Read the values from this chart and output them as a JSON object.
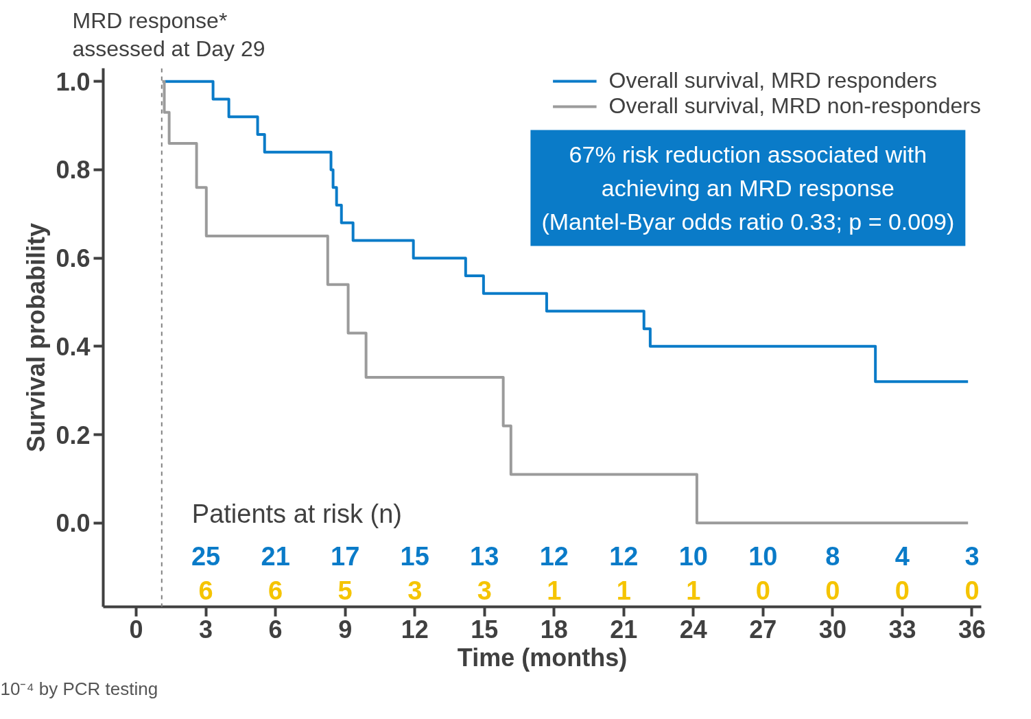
{
  "chart_data": {
    "type": "step",
    "xlabel": "Time (months)",
    "ylabel": "Survival probability",
    "xlim": [
      -1.42,
      36.4
    ],
    "ylim": [
      -0.19,
      1.03
    ],
    "xticks": [
      0,
      3,
      6,
      9,
      12,
      15,
      18,
      21,
      24,
      27,
      30,
      33,
      36
    ],
    "yticks": [
      {
        "value": 0,
        "label": "0.0"
      },
      {
        "value": 0.2,
        "label": "0.2"
      },
      {
        "value": 0.4,
        "label": "0.4"
      },
      {
        "value": 0.6,
        "label": "0.6"
      },
      {
        "value": 0.8,
        "label": "0.8"
      },
      {
        "value": 1,
        "label": "1.0"
      }
    ],
    "tick_labels": "xy",
    "grid": false,
    "legend": "top right",
    "line_style": "solid",
    "marker": "none",
    "series": [
      {
        "name": "Overall survival, MRD responders",
        "color": "#0a7bc8",
        "x": [
          1.24,
          3.31,
          3.99,
          5.23,
          5.53,
          8.39,
          8.48,
          8.63,
          8.84,
          9.34,
          11.94,
          14.19,
          14.96,
          17.68,
          21.87,
          22.14,
          31.84,
          35.83
        ],
        "values": [
          1.0,
          0.96,
          0.92,
          0.88,
          0.84,
          0.8,
          0.76,
          0.72,
          0.68,
          0.64,
          0.6,
          0.56,
          0.52,
          0.48,
          0.44,
          0.4,
          0.32,
          0.32
        ]
      },
      {
        "name": "Overall survival, MRD non-responders",
        "color": "#9b9b9b",
        "x": [
          1.12,
          1.21,
          1.42,
          2.6,
          3.02,
          8.25,
          9.13,
          9.9,
          15.81,
          16.14,
          24.15,
          35.83
        ],
        "values": [
          1.0,
          0.93,
          0.86,
          0.76,
          0.65,
          0.54,
          0.43,
          0.33,
          0.22,
          0.11,
          0.0,
          0.0
        ]
      }
    ],
    "ref_lines": [
      {
        "axis": "x",
        "value": 1.1,
        "label": "MRD response*\nassessed at Day 29",
        "color": "#808080",
        "line_style": "dashed"
      }
    ],
    "annotations": [
      "67% risk reduction associated with\nachieving an MRD response\n(Mantel-Byar odds ratio 0.33; p = 0.009)",
      "Patients at risk (n)",
      "10⁻⁴ by PCR testing",
      "25",
      "21",
      "17",
      "15",
      "13",
      "12",
      "12",
      "10",
      "10",
      "8",
      "4",
      "3",
      "6",
      "6",
      "5",
      "3",
      "3",
      "1",
      "1",
      "1",
      "0",
      "0",
      "0",
      "0"
    ]
  }
}
